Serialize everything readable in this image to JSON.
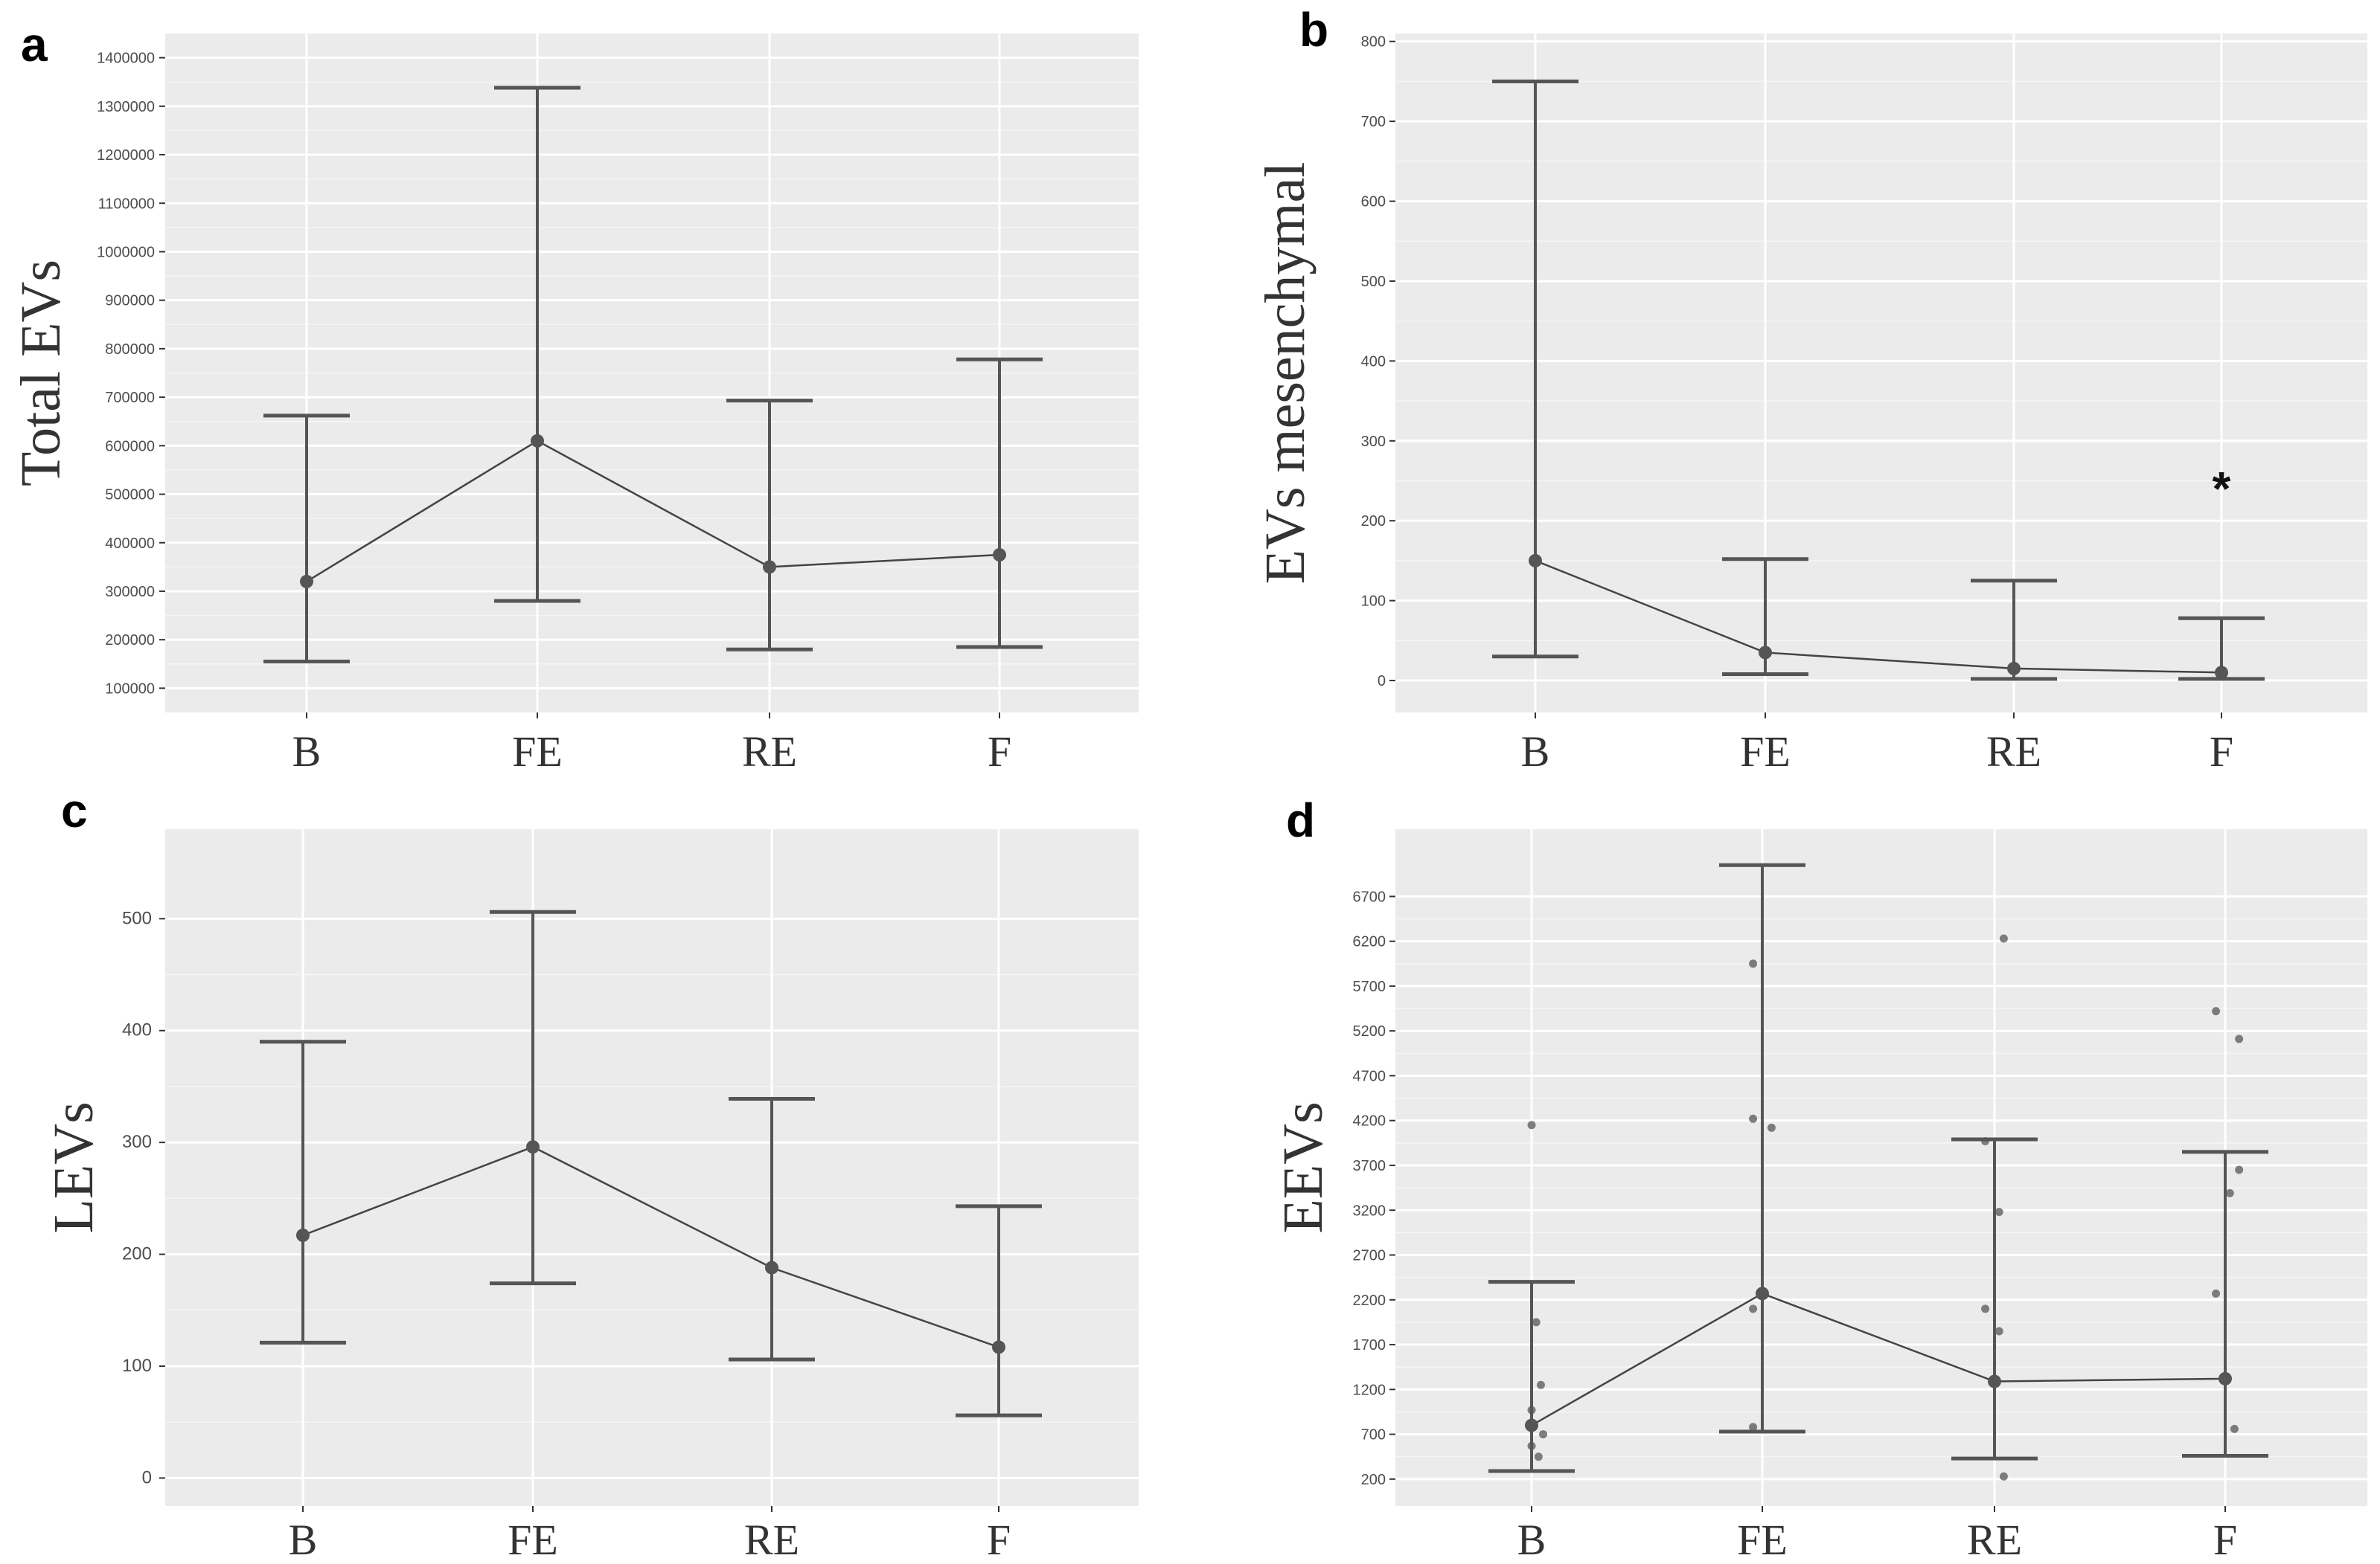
{
  "chart_data": [
    {
      "id": "a",
      "type": "line",
      "panel_label": "a",
      "ylabel": "Total EVs",
      "xlabel": "",
      "categories": [
        "B",
        "FE",
        "RE",
        "F"
      ],
      "ylim": [
        50000,
        1450000
      ],
      "yticks": [
        100000,
        200000,
        300000,
        400000,
        500000,
        600000,
        700000,
        800000,
        900000,
        1000000,
        1100000,
        1200000,
        1300000,
        1400000
      ],
      "ytick_labels": [
        "100000",
        "200000",
        "300000",
        "400000",
        "500000",
        "600000",
        "700000",
        "800000",
        "900000",
        "1000000",
        "1100000",
        "1200000",
        "1300000",
        "1400000"
      ],
      "series": [
        {
          "name": "Total EVs",
          "values": [
            320000,
            610000,
            350000,
            375000
          ],
          "lower": [
            155000,
            280000,
            180000,
            185000
          ],
          "upper": [
            662000,
            1338000,
            693000,
            778000
          ]
        }
      ],
      "points": [],
      "annotations": []
    },
    {
      "id": "b",
      "type": "line",
      "panel_label": "b",
      "ylabel": "EVs mesenchymal",
      "xlabel": "",
      "categories": [
        "B",
        "FE",
        "RE",
        "F"
      ],
      "ylim": [
        -40,
        810
      ],
      "yticks": [
        0,
        100,
        200,
        300,
        400,
        500,
        600,
        700,
        800
      ],
      "ytick_labels": [
        "0",
        "100",
        "200",
        "300",
        "400",
        "500",
        "600",
        "700",
        "800"
      ],
      "series": [
        {
          "name": "EVs mesenchymal",
          "values": [
            150,
            35,
            15,
            10
          ],
          "lower": [
            30,
            8,
            2,
            2
          ],
          "upper": [
            750,
            152,
            125,
            78
          ]
        }
      ],
      "points": [],
      "annotations": [
        {
          "category": "F",
          "y": 240,
          "text": "*"
        }
      ]
    },
    {
      "id": "c",
      "type": "line",
      "panel_label": "c",
      "ylabel": "LEVs",
      "xlabel": "",
      "categories": [
        "B",
        "FE",
        "RE",
        "F"
      ],
      "ylim": [
        -25,
        580
      ],
      "yticks": [
        0,
        100,
        200,
        300,
        400,
        500
      ],
      "ytick_labels": [
        "0",
        "100",
        "200",
        "300",
        "400",
        "500"
      ],
      "series": [
        {
          "name": "LEVs",
          "values": [
            217,
            296,
            188,
            117
          ],
          "lower": [
            121,
            174,
            106,
            56
          ],
          "upper": [
            390,
            506,
            339,
            243
          ]
        }
      ],
      "points": [],
      "annotations": []
    },
    {
      "id": "d",
      "type": "line",
      "panel_label": "d",
      "ylabel": "EEVs",
      "xlabel": "",
      "categories": [
        "B",
        "FE",
        "RE",
        "F"
      ],
      "ylim": [
        -100,
        7450
      ],
      "yticks": [
        200,
        700,
        1200,
        1700,
        2200,
        2700,
        3200,
        3700,
        4200,
        4700,
        5200,
        5700,
        6200,
        6700
      ],
      "ytick_labels": [
        "200",
        "700",
        "1200",
        "1700",
        "2200",
        "2700",
        "3200",
        "3700",
        "4200",
        "4700",
        "5200",
        "5700",
        "6200",
        "6700"
      ],
      "series": [
        {
          "name": "EEVs",
          "values": [
            800,
            2270,
            1290,
            1320
          ],
          "lower": [
            290,
            730,
            430,
            460
          ],
          "upper": [
            2400,
            7050,
            3990,
            3850
          ]
        }
      ],
      "points": [
        {
          "category": "B",
          "offset": 0.0,
          "y": 4150
        },
        {
          "category": "B",
          "offset": 0.02,
          "y": 1950
        },
        {
          "category": "B",
          "offset": 0.04,
          "y": 1250
        },
        {
          "category": "B",
          "offset": 0.0,
          "y": 970
        },
        {
          "category": "B",
          "offset": 0.05,
          "y": 700
        },
        {
          "category": "B",
          "offset": 0.0,
          "y": 570
        },
        {
          "category": "B",
          "offset": 0.03,
          "y": 450
        },
        {
          "category": "FE",
          "offset": -0.04,
          "y": 5950
        },
        {
          "category": "FE",
          "offset": -0.04,
          "y": 4220
        },
        {
          "category": "FE",
          "offset": 0.04,
          "y": 4120
        },
        {
          "category": "FE",
          "offset": -0.04,
          "y": 2100
        },
        {
          "category": "FE",
          "offset": -0.04,
          "y": 780
        },
        {
          "category": "RE",
          "offset": 0.04,
          "y": 6230
        },
        {
          "category": "RE",
          "offset": -0.04,
          "y": 3970
        },
        {
          "category": "RE",
          "offset": 0.02,
          "y": 3180
        },
        {
          "category": "RE",
          "offset": -0.04,
          "y": 2100
        },
        {
          "category": "RE",
          "offset": 0.02,
          "y": 1850
        },
        {
          "category": "RE",
          "offset": 0.04,
          "y": 230
        },
        {
          "category": "F",
          "offset": -0.04,
          "y": 5420
        },
        {
          "category": "F",
          "offset": 0.06,
          "y": 5110
        },
        {
          "category": "F",
          "offset": 0.06,
          "y": 3650
        },
        {
          "category": "F",
          "offset": 0.02,
          "y": 3390
        },
        {
          "category": "F",
          "offset": -0.04,
          "y": 2270
        },
        {
          "category": "F",
          "offset": 0.04,
          "y": 760
        }
      ],
      "annotations": []
    }
  ]
}
